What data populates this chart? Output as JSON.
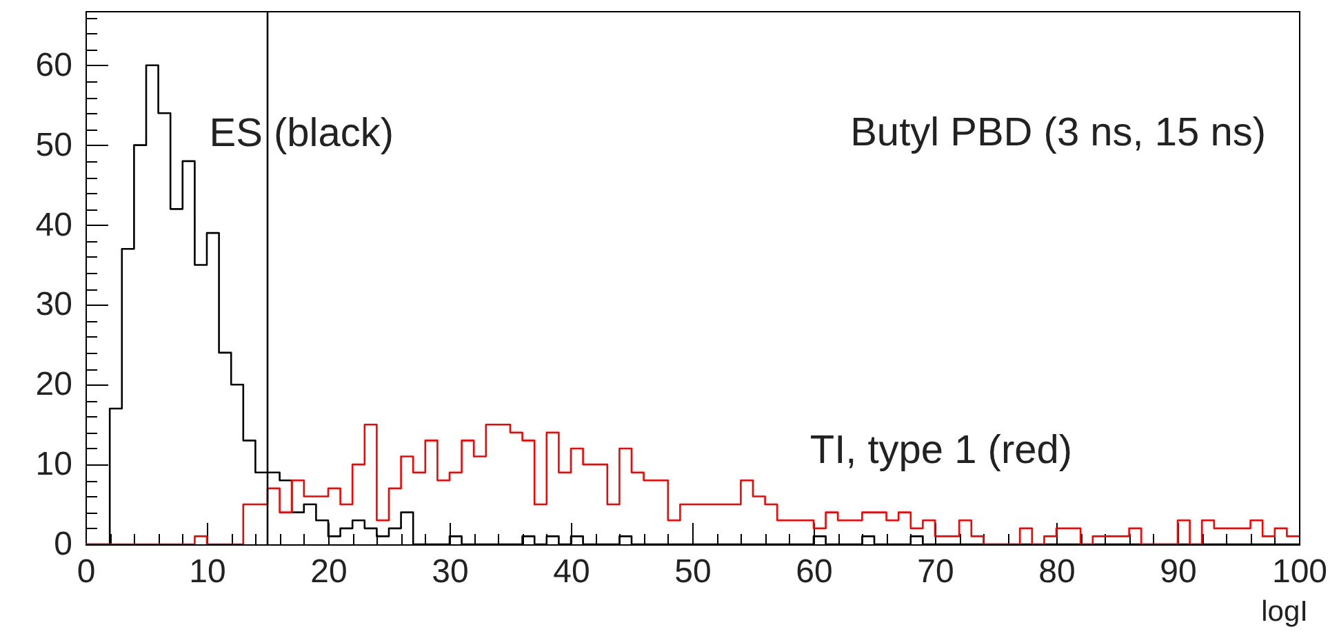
{
  "chart_data": {
    "type": "histogram",
    "title": "Butyl PBD (3 ns, 15 ns)",
    "xlabel": "logI",
    "bins": [
      0,
      1,
      2,
      3,
      4,
      5,
      6,
      7,
      8,
      9,
      10,
      11,
      12,
      13,
      14,
      15,
      16,
      17,
      18,
      19,
      20,
      21,
      22,
      23,
      24,
      25,
      26,
      27,
      28,
      29,
      30,
      31,
      32,
      33,
      34,
      35,
      36,
      37,
      38,
      39,
      40,
      41,
      42,
      43,
      44,
      45,
      46,
      47,
      48,
      49,
      50,
      51,
      52,
      53,
      54,
      55,
      56,
      57,
      58,
      59,
      60,
      61,
      62,
      63,
      64,
      65,
      66,
      67,
      68,
      69,
      70,
      71,
      72,
      73,
      74,
      75,
      76,
      77,
      78,
      79,
      80,
      81,
      82,
      83,
      84,
      85,
      86,
      87,
      88,
      89,
      90,
      91,
      92,
      93,
      94,
      95,
      96,
      97,
      98,
      99,
      100
    ],
    "series": [
      {
        "color": "#000000",
        "values": [
          0,
          0,
          17,
          37,
          50,
          60,
          54,
          42,
          48,
          35,
          39,
          24,
          20,
          13,
          9,
          9,
          8,
          4,
          5,
          3,
          1,
          2,
          3,
          2,
          1,
          2,
          4,
          0,
          0,
          0,
          1,
          0,
          0,
          0,
          0,
          0,
          1,
          0,
          1,
          0,
          1,
          0,
          0,
          0,
          1,
          0,
          0,
          0,
          0,
          0,
          0,
          0,
          0,
          0,
          0,
          0,
          0,
          0,
          0,
          0,
          1,
          0,
          0,
          0,
          1,
          0,
          0,
          0,
          1,
          0,
          0,
          0,
          0,
          0,
          0,
          0,
          0,
          0,
          0,
          0,
          0,
          0,
          0,
          0,
          0,
          0,
          0,
          0,
          0,
          0,
          0,
          0,
          0,
          0,
          0,
          0,
          0,
          0,
          0,
          0
        ]
      },
      {
        "color": "#ff0000",
        "values": [
          0,
          0,
          0,
          0,
          0,
          0,
          0,
          0,
          0,
          1,
          0,
          0,
          0,
          5,
          5,
          7,
          4,
          8,
          6,
          6,
          7,
          5,
          10,
          15,
          3,
          7,
          11,
          9,
          13,
          8,
          9,
          13,
          11,
          15,
          15,
          14,
          13,
          5,
          14,
          9,
          12,
          10,
          10,
          5,
          12,
          9,
          8,
          8,
          3,
          5,
          5,
          5,
          5,
          5,
          8,
          6,
          5,
          3,
          3,
          3,
          2,
          4,
          3,
          3,
          4,
          4,
          3,
          4,
          2,
          3,
          1,
          1,
          3,
          1,
          0,
          0,
          0,
          2,
          0,
          1,
          2,
          2,
          0,
          1,
          1,
          1,
          2,
          0,
          0,
          0,
          3,
          0,
          3,
          2,
          2,
          2,
          3,
          1,
          2,
          1
        ]
      }
    ],
    "xlim": [
      0,
      100
    ],
    "xticks": [
      0,
      {
        "value": 2,
        "label": null
      },
      {
        "value": 4,
        "label": null
      },
      {
        "value": 6,
        "label": null
      },
      {
        "value": 8,
        "label": null
      },
      10,
      {
        "value": 12,
        "label": null
      },
      {
        "value": 14,
        "label": null
      },
      {
        "value": 16,
        "label": null
      },
      {
        "value": 18,
        "label": null
      },
      20,
      {
        "value": 22,
        "label": null
      },
      {
        "value": 24,
        "label": null
      },
      {
        "value": 26,
        "label": null
      },
      {
        "value": 28,
        "label": null
      },
      30,
      {
        "value": 32,
        "label": null
      },
      {
        "value": 34,
        "label": null
      },
      {
        "value": 36,
        "label": null
      },
      {
        "value": 38,
        "label": null
      },
      40,
      {
        "value": 42,
        "label": null
      },
      {
        "value": 44,
        "label": null
      },
      {
        "value": 46,
        "label": null
      },
      {
        "value": 48,
        "label": null
      },
      50,
      {
        "value": 52,
        "label": null
      },
      {
        "value": 54,
        "label": null
      },
      {
        "value": 56,
        "label": null
      },
      {
        "value": 58,
        "label": null
      },
      60,
      {
        "value": 62,
        "label": null
      },
      {
        "value": 64,
        "label": null
      },
      {
        "value": 66,
        "label": null
      },
      {
        "value": 68,
        "label": null
      },
      70,
      {
        "value": 72,
        "label": null
      },
      {
        "value": 74,
        "label": null
      },
      {
        "value": 76,
        "label": null
      },
      {
        "value": 78,
        "label": null
      },
      80,
      {
        "value": 82,
        "label": null
      },
      {
        "value": 84,
        "label": null
      },
      {
        "value": 86,
        "label": null
      },
      {
        "value": 88,
        "label": null
      },
      90,
      {
        "value": 92,
        "label": null
      },
      {
        "value": 94,
        "label": null
      },
      {
        "value": 96,
        "label": null
      },
      {
        "value": 98,
        "label": null
      },
      100
    ],
    "ylim": [
      0,
      66.8
    ],
    "yticks": [
      0,
      {
        "value": 2,
        "label": null
      },
      {
        "value": 4,
        "label": null
      },
      {
        "value": 6,
        "label": null
      },
      {
        "value": 8,
        "label": null
      },
      10,
      {
        "value": 12,
        "label": null
      },
      {
        "value": 14,
        "label": null
      },
      {
        "value": 16,
        "label": null
      },
      {
        "value": 18,
        "label": null
      },
      20,
      {
        "value": 22,
        "label": null
      },
      {
        "value": 24,
        "label": null
      },
      {
        "value": 26,
        "label": null
      },
      {
        "value": 28,
        "label": null
      },
      30,
      {
        "value": 32,
        "label": null
      },
      {
        "value": 34,
        "label": null
      },
      {
        "value": 36,
        "label": null
      },
      {
        "value": 38,
        "label": null
      },
      40,
      {
        "value": 42,
        "label": null
      },
      {
        "value": 44,
        "label": null
      },
      {
        "value": 46,
        "label": null
      },
      {
        "value": 48,
        "label": null
      },
      50,
      {
        "value": 52,
        "label": null
      },
      {
        "value": 54,
        "label": null
      },
      {
        "value": 56,
        "label": null
      },
      {
        "value": 58,
        "label": null
      },
      60,
      {
        "value": 62,
        "label": null
      },
      {
        "value": 64,
        "label": null
      },
      {
        "value": 66,
        "label": null
      }
    ],
    "ref_lines": [
      {
        "axis": "x",
        "value": 15,
        "color": "#000000"
      }
    ],
    "annotations": [
      "ES (black)",
      "TI, type 1 (red)"
    ]
  }
}
